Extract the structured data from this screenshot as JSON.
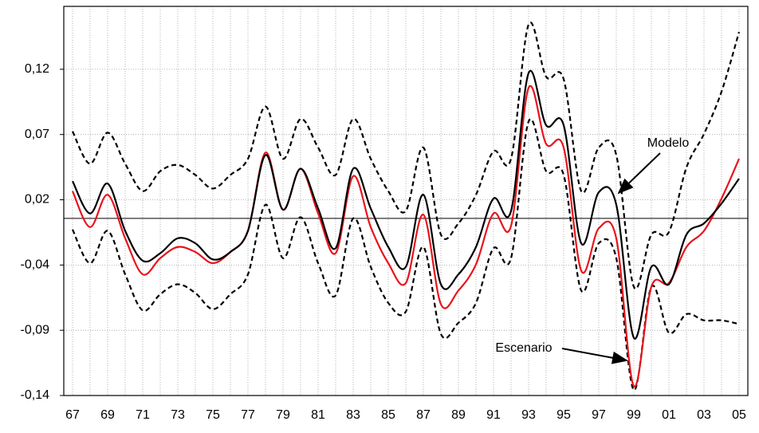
{
  "chart_data": {
    "type": "line",
    "categories": [
      "67",
      null,
      "69",
      null,
      "71",
      null,
      "73",
      null,
      "75",
      null,
      "77",
      null,
      "79",
      null,
      "81",
      null,
      "83",
      null,
      "85",
      null,
      "87",
      null,
      "89",
      null,
      "91",
      null,
      "93",
      null,
      "95",
      null,
      "97",
      null,
      "99",
      null,
      "01",
      null,
      "03",
      null,
      "05"
    ],
    "series": [
      {
        "color": "#000000",
        "dashed": true,
        "values": [
          0.07,
          0.044,
          0.069,
          0.044,
          0.022,
          0.038,
          0.043,
          0.035,
          0.024,
          0.035,
          0.048,
          0.09,
          0.048,
          0.08,
          0.057,
          0.035,
          0.08,
          0.048,
          0.022,
          0.006,
          0.057,
          -0.013,
          -0.004,
          0.019,
          0.054,
          0.048,
          0.156,
          0.114,
          0.112,
          0.022,
          0.057,
          0.051,
          -0.055,
          -0.013,
          -0.011,
          0.041,
          0.068,
          0.102,
          0.15
        ]
      },
      {
        "color": "#000000",
        "dashed": true,
        "values": [
          -0.009,
          -0.036,
          -0.01,
          -0.045,
          -0.074,
          -0.061,
          -0.053,
          -0.06,
          -0.073,
          -0.061,
          -0.045,
          0.011,
          -0.032,
          0.001,
          -0.036,
          -0.062,
          0.0,
          -0.039,
          -0.068,
          -0.075,
          -0.023,
          -0.093,
          -0.084,
          -0.068,
          -0.024,
          -0.032,
          0.078,
          0.038,
          0.035,
          -0.058,
          -0.02,
          -0.032,
          -0.138,
          -0.055,
          -0.092,
          -0.077,
          -0.082,
          -0.082,
          -0.085
        ]
      },
      {
        "name": "Escenario",
        "color": "#e8141b",
        "dashed": false,
        "values": [
          0.022,
          -0.007,
          0.019,
          -0.016,
          -0.045,
          -0.032,
          -0.023,
          -0.027,
          -0.036,
          -0.027,
          -0.01,
          0.053,
          0.007,
          0.04,
          0.004,
          -0.028,
          0.034,
          -0.007,
          -0.036,
          -0.052,
          0.003,
          -0.069,
          -0.058,
          -0.037,
          0.004,
          -0.006,
          0.105,
          0.06,
          0.057,
          -0.042,
          -0.008,
          -0.016,
          -0.135,
          -0.055,
          -0.052,
          -0.023,
          -0.01,
          0.016,
          0.048
        ]
      },
      {
        "name": "Modelo",
        "color": "#000000",
        "dashed": false,
        "values": [
          0.03,
          0.004,
          0.028,
          -0.01,
          -0.034,
          -0.028,
          -0.016,
          -0.02,
          -0.033,
          -0.027,
          -0.01,
          0.051,
          0.007,
          0.04,
          0.008,
          -0.024,
          0.04,
          0.008,
          -0.023,
          -0.039,
          0.019,
          -0.053,
          -0.045,
          -0.023,
          0.016,
          0.006,
          0.117,
          0.075,
          0.075,
          -0.02,
          0.021,
          0.011,
          -0.096,
          -0.039,
          -0.053,
          -0.013,
          -0.004,
          0.012,
          0.032
        ]
      }
    ],
    "ylim": [
      -0.1425,
      0.1706
    ],
    "yticks": [
      {
        "value": 0.12,
        "label": "0,12"
      },
      {
        "value": 0.0675,
        "label": "0,07"
      },
      {
        "value": 0.015,
        "label": "0,02"
      },
      {
        "value": -0.0375,
        "label": "-0,04"
      },
      {
        "value": -0.09,
        "label": "-0,09"
      },
      {
        "value": -0.1425,
        "label": "-0,14"
      }
    ],
    "zero_line": 0,
    "grid": true
  }
}
